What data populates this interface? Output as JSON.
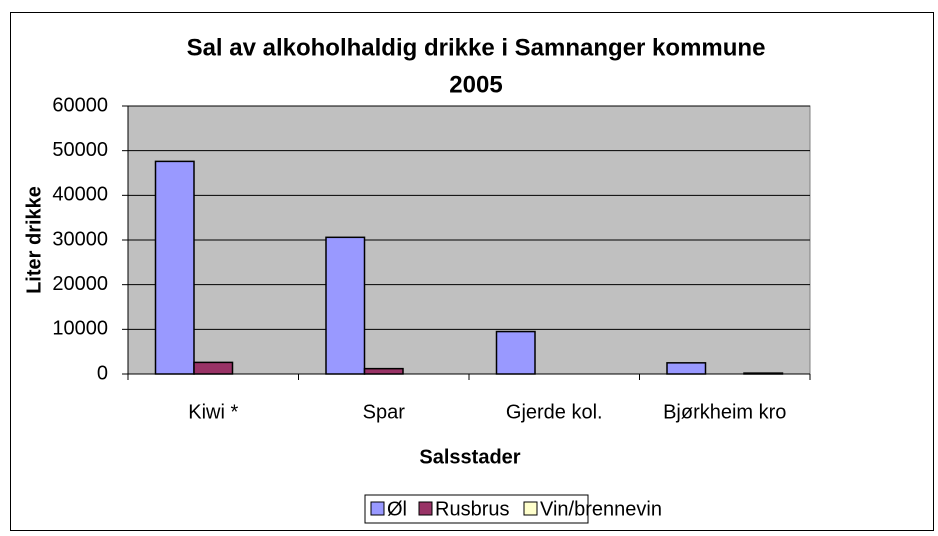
{
  "chart_data": {
    "type": "bar",
    "title": [
      "Sal av alkoholhaldig drikke i Samnanger kommune",
      "2005"
    ],
    "x_label": "Salsstader",
    "y_label": "Liter drikke",
    "categories": [
      "Kiwi *",
      "Spar",
      "Gjerde kol.",
      "Bjørkheim kro"
    ],
    "series": [
      {
        "name": "Øl",
        "color": "#9999ff",
        "values": [
          47600,
          30600,
          9500,
          2500
        ]
      },
      {
        "name": "Rusbrus",
        "color": "#993366",
        "values": [
          2600,
          1200,
          0,
          0
        ]
      },
      {
        "name": "Vin/brennevin",
        "color": "#ffffcc",
        "values": [
          0,
          0,
          0,
          200
        ]
      }
    ],
    "ylim": [
      0,
      60000
    ],
    "yticks": [
      0,
      10000,
      20000,
      30000,
      40000,
      50000,
      60000
    ],
    "grid": true,
    "plot_background": "#c0c0c0",
    "legend": "bottom"
  }
}
